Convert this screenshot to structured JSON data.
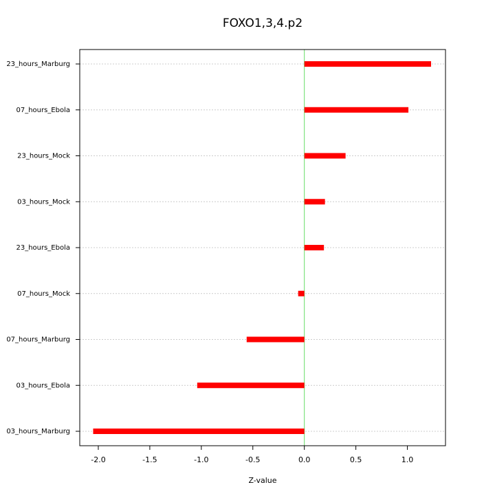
{
  "chart_data": {
    "type": "hbar",
    "title": "FOXO1,3,4.p2",
    "x_label": "Z-value",
    "categories": [
      "23_hours_Marburg",
      "07_hours_Ebola",
      "23_hours_Mock",
      "03_hours_Mock",
      "23_hours_Ebola",
      "07_hours_Mock",
      "07_hours_Marburg",
      "03_hours_Ebola",
      "03_hours_Marburg"
    ],
    "values": [
      1.23,
      1.01,
      0.4,
      0.2,
      0.19,
      -0.06,
      -0.56,
      -1.04,
      -2.05
    ],
    "color": "#ff0000",
    "zero_line_color": "#66dd66",
    "xlim": [
      -2.18,
      1.37
    ],
    "xticks": [
      {
        "value": -2,
        "label": "-2.0"
      },
      -1.5,
      {
        "value": -1,
        "label": "-1.0"
      },
      -0.5,
      {
        "value": 0,
        "label": "0.0"
      },
      0.5,
      {
        "value": 1,
        "label": "1.0"
      }
    ],
    "grid": true
  }
}
